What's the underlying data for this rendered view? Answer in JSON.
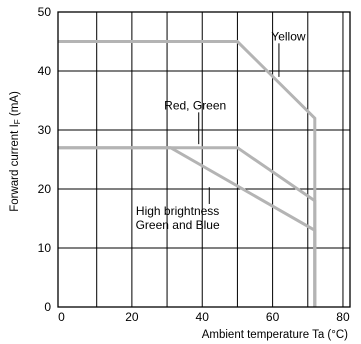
{
  "chart_data": {
    "type": "line",
    "xlabel": "Ambient temperature Ta (°C)",
    "ylabel": "Forward current I_F (mA)",
    "ylabel_main": "Forward current I",
    "ylabel_sub": "F",
    "ylabel_unit": " (mA)",
    "xlim": [
      -1,
      82
    ],
    "ylim": [
      0,
      50
    ],
    "x_ticks": [
      0,
      20,
      40,
      60,
      80
    ],
    "y_ticks": [
      0,
      10,
      20,
      30,
      40,
      50
    ],
    "grid": true,
    "series": [
      {
        "name": "Yellow",
        "points": [
          [
            -1,
            45
          ],
          [
            50,
            45
          ],
          [
            72,
            32
          ],
          [
            72,
            0
          ]
        ]
      },
      {
        "name": "Red, Green",
        "points": [
          [
            -1,
            27
          ],
          [
            50,
            27
          ],
          [
            72,
            18
          ],
          [
            72,
            0
          ]
        ]
      },
      {
        "name": "High brightness Green and Blue",
        "points": [
          [
            -1,
            27
          ],
          [
            31,
            27
          ],
          [
            72,
            13
          ],
          [
            72,
            0
          ]
        ]
      }
    ],
    "annotations": [
      {
        "lines": [
          "Yellow"
        ],
        "at": [
          64.5,
          45.2
        ],
        "pointer_to": [
          61.8,
          39
        ]
      },
      {
        "lines": [
          "Red, Green"
        ],
        "at": [
          38,
          33.5
        ],
        "pointer_to": [
          39,
          27.6
        ]
      },
      {
        "lines": [
          "High brightness",
          "Green and Blue"
        ],
        "at": [
          33,
          15.6
        ],
        "pointer_to": [
          42,
          20.3
        ]
      }
    ],
    "colors": {
      "curve": "#b4b4b4",
      "grid": "#000000",
      "pointer": "#000000"
    }
  }
}
